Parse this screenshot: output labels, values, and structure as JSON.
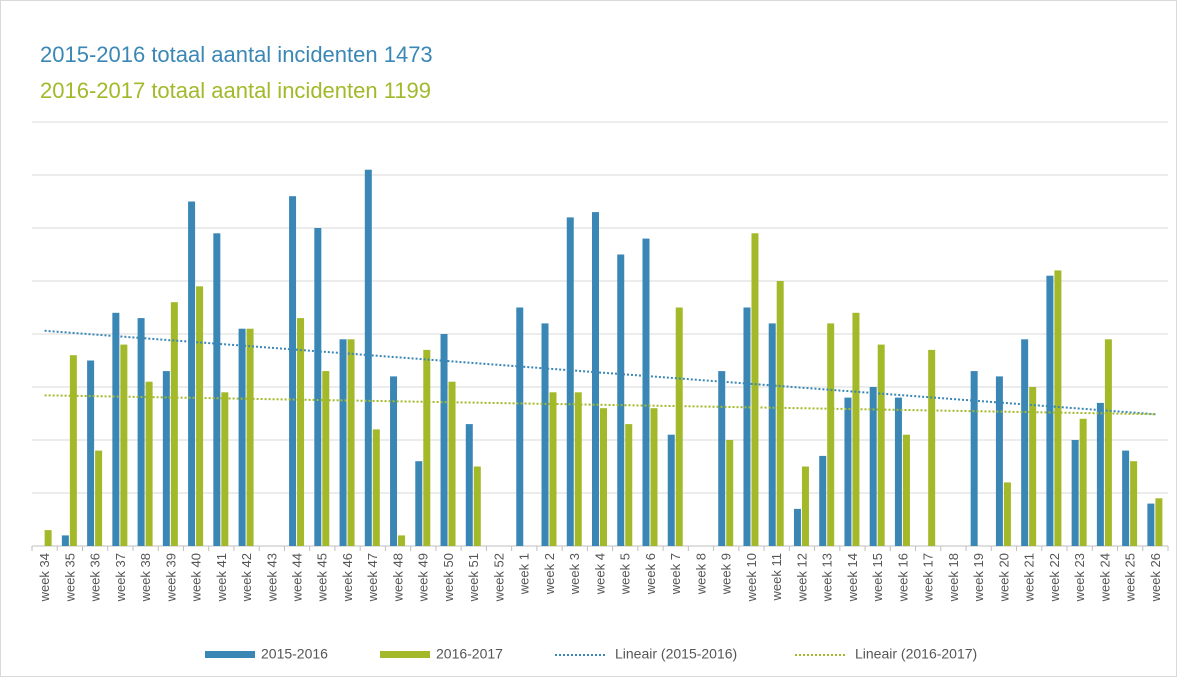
{
  "chart_data": {
    "type": "bar",
    "title_lines": [
      "2015-2016 totaal aantal incidenten 1473",
      "2016-2017 totaal aantal incidenten 1199"
    ],
    "categories": [
      "week 34",
      "week 35",
      "week 36",
      "week 37",
      "week 38",
      "week 39",
      "week 40",
      "week 41",
      "week 42",
      "week 43",
      "week 44",
      "week 45",
      "week 46",
      "week 47",
      "week 48",
      "week 49",
      "week 50",
      "week 51",
      "week 52",
      "week 1",
      "week 2",
      "week 3",
      "week 4",
      "week 5",
      "week 6",
      "week 7",
      "week 8",
      "week 9",
      "week 10",
      "week 11",
      "week 12",
      "week 13",
      "week 14",
      "week 15",
      "week 16",
      "week 17",
      "week 18",
      "week 19",
      "week 20",
      "week 21",
      "week 22",
      "week 23",
      "week 24",
      "week 25",
      "week 26"
    ],
    "series": [
      {
        "name": "2015-2016",
        "color": "#3a87b5",
        "trendline": "Lineair (2015-2016)",
        "values": [
          0,
          2,
          35,
          44,
          43,
          33,
          65,
          59,
          41,
          0,
          66,
          60,
          39,
          71,
          32,
          16,
          40,
          23,
          0,
          45,
          42,
          62,
          63,
          55,
          58,
          21,
          0,
          33,
          45,
          42,
          7,
          17,
          28,
          30,
          28,
          0,
          0,
          33,
          32,
          39,
          51,
          20,
          27,
          18,
          8
        ]
      },
      {
        "name": "2016-2017",
        "color": "#a3b929",
        "trendline": "Lineair (2016-2017)",
        "values": [
          3,
          36,
          18,
          38,
          31,
          46,
          49,
          29,
          41,
          0,
          43,
          33,
          39,
          22,
          2,
          37,
          31,
          15,
          0,
          0,
          29,
          29,
          26,
          23,
          26,
          45,
          0,
          20,
          59,
          50,
          15,
          42,
          44,
          38,
          21,
          37,
          0,
          0,
          12,
          30,
          52,
          24,
          39,
          16,
          9
        ]
      }
    ],
    "ylim": [
      0,
      80
    ],
    "yticks": [
      0,
      10,
      20,
      30,
      40,
      50,
      60,
      70,
      80
    ],
    "grid": true
  }
}
